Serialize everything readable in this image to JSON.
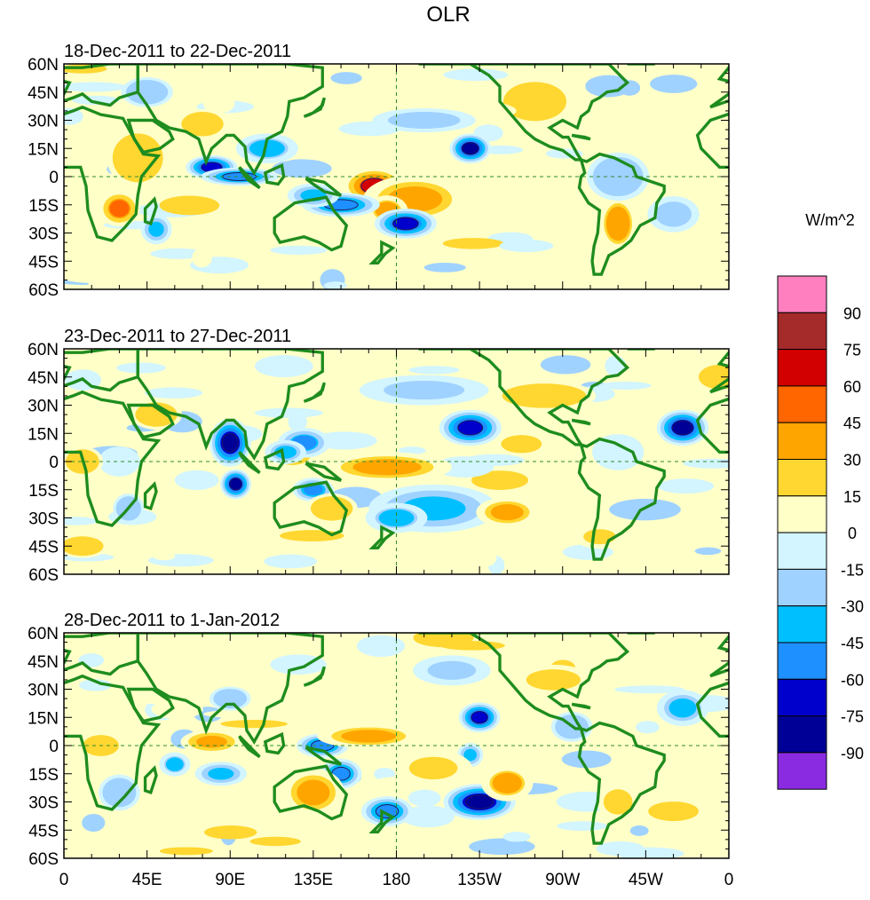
{
  "chart_data": {
    "type": "heatmap",
    "title": "OLR",
    "units_label": "W/m^2",
    "colorbar": {
      "tick_labels": [
        "90",
        "75",
        "60",
        "45",
        "30",
        "15",
        "0",
        "-15",
        "-30",
        "-45",
        "-60",
        "-75",
        "-90"
      ],
      "levels": [
        90,
        75,
        60,
        45,
        30,
        15,
        0,
        -15,
        -30,
        -45,
        -60,
        -75,
        -90
      ],
      "colors": [
        "#ff7fbf",
        "#a52a2a",
        "#d20000",
        "#ff6600",
        "#ffa500",
        "#ffd730",
        "#ffffc8",
        "#d2f5ff",
        "#a0d2ff",
        "#00bfff",
        "#1e90ff",
        "#0000cd",
        "#000096",
        "#8a2be2"
      ]
    },
    "x_ticks": [
      "0",
      "45E",
      "90E",
      "135E",
      "180",
      "135W",
      "90W",
      "45W",
      "0"
    ],
    "x_values": [
      0,
      45,
      90,
      135,
      180,
      225,
      270,
      315,
      360
    ],
    "y_ticks": [
      "60N",
      "45N",
      "30N",
      "15N",
      "0",
      "15S",
      "30S",
      "45S",
      "60S"
    ],
    "y_values": [
      60,
      45,
      30,
      15,
      0,
      -15,
      -30,
      -45,
      -60
    ],
    "xlim": [
      0,
      360
    ],
    "ylim": [
      -60,
      60
    ],
    "panels": [
      {
        "subtitle": "18-Dec-2011 to 22-Dec-2011",
        "blobs": [
          {
            "lon": 168,
            "lat": -5,
            "rlon": 12,
            "rlat": 6,
            "v": 65
          },
          {
            "lon": 190,
            "lat": -12,
            "rlon": 20,
            "rlat": 8,
            "v": 40
          },
          {
            "lon": 175,
            "lat": -18,
            "rlon": 8,
            "rlat": 5,
            "v": 35
          },
          {
            "lon": 30,
            "lat": -17,
            "rlon": 8,
            "rlat": 6,
            "v": 50
          },
          {
            "lon": 40,
            "lat": 10,
            "rlon": 12,
            "rlat": 10,
            "v": 20
          },
          {
            "lon": 75,
            "lat": 28,
            "rlon": 10,
            "rlat": 5,
            "v": 20
          },
          {
            "lon": 300,
            "lat": -25,
            "rlon": 8,
            "rlat": 10,
            "v": 35
          },
          {
            "lon": 255,
            "lat": 40,
            "rlon": 15,
            "rlat": 8,
            "v": 20
          },
          {
            "lon": 210,
            "lat": 35,
            "rlon": 25,
            "rlat": 4,
            "v": 15
          },
          {
            "lon": 340,
            "lat": 10,
            "rlon": 10,
            "rlat": 5,
            "v": 15
          },
          {
            "lon": 355,
            "lat": -30,
            "rlon": 8,
            "rlat": 4,
            "v": 15
          },
          {
            "lon": 90,
            "lat": -25,
            "rlon": 10,
            "rlat": 5,
            "v": 15
          },
          {
            "lon": 220,
            "lat": 15,
            "rlon": 8,
            "rlat": 5,
            "v": -80
          },
          {
            "lon": 80,
            "lat": 5,
            "rlon": 10,
            "rlat": 4,
            "v": -75
          },
          {
            "lon": 95,
            "lat": 0,
            "rlon": 15,
            "rlat": 3,
            "v": -60
          },
          {
            "lon": 150,
            "lat": -15,
            "rlon": 15,
            "rlat": 4,
            "v": -60
          },
          {
            "lon": 185,
            "lat": -25,
            "rlon": 12,
            "rlat": 5,
            "v": -70
          },
          {
            "lon": 135,
            "lat": -10,
            "rlon": 10,
            "rlat": 4,
            "v": -45
          },
          {
            "lon": 50,
            "lat": -28,
            "rlon": 6,
            "rlat": 5,
            "v": -45
          },
          {
            "lon": 110,
            "lat": 15,
            "rlon": 12,
            "rlat": 5,
            "v": -35
          },
          {
            "lon": 195,
            "lat": 30,
            "rlon": 20,
            "rlat": 4,
            "v": -25
          },
          {
            "lon": 45,
            "lat": 45,
            "rlon": 10,
            "rlat": 5,
            "v": -20
          },
          {
            "lon": 330,
            "lat": -20,
            "rlon": 10,
            "rlat": 6,
            "v": -25
          },
          {
            "lon": 300,
            "lat": 0,
            "rlon": 12,
            "rlat": 8,
            "v": -20
          }
        ]
      },
      {
        "subtitle": "23-Dec-2011 to 27-Dec-2011",
        "blobs": [
          {
            "lon": 90,
            "lat": 10,
            "rlon": 8,
            "rlat": 8,
            "v": -85
          },
          {
            "lon": 93,
            "lat": -12,
            "rlon": 6,
            "rlat": 5,
            "v": -80
          },
          {
            "lon": 220,
            "lat": 18,
            "rlon": 12,
            "rlat": 6,
            "v": -75
          },
          {
            "lon": 335,
            "lat": 18,
            "rlon": 10,
            "rlat": 6,
            "v": -80
          },
          {
            "lon": 130,
            "lat": 10,
            "rlon": 10,
            "rlat": 5,
            "v": -50
          },
          {
            "lon": 135,
            "lat": -15,
            "rlon": 8,
            "rlat": 4,
            "v": -55
          },
          {
            "lon": 120,
            "lat": 5,
            "rlon": 8,
            "rlat": 4,
            "v": -40
          },
          {
            "lon": 200,
            "lat": -25,
            "rlon": 25,
            "rlat": 8,
            "v": -45
          },
          {
            "lon": 180,
            "lat": -30,
            "rlon": 12,
            "rlat": 5,
            "v": -35
          },
          {
            "lon": 195,
            "lat": 38,
            "rlon": 25,
            "rlat": 5,
            "v": -30
          },
          {
            "lon": 35,
            "lat": -25,
            "rlon": 6,
            "rlat": 5,
            "v": -20
          },
          {
            "lon": 30,
            "lat": 0,
            "rlon": 8,
            "rlat": 5,
            "v": -15
          },
          {
            "lon": 300,
            "lat": 5,
            "rlon": 10,
            "rlat": 6,
            "v": -15
          },
          {
            "lon": 175,
            "lat": -3,
            "rlon": 25,
            "rlat": 5,
            "v": 40
          },
          {
            "lon": 240,
            "lat": -27,
            "rlon": 12,
            "rlat": 5,
            "v": 40
          },
          {
            "lon": 290,
            "lat": -40,
            "rlon": 10,
            "rlat": 4,
            "v": 30
          },
          {
            "lon": 50,
            "lat": 25,
            "rlon": 10,
            "rlat": 5,
            "v": 20
          },
          {
            "lon": 10,
            "lat": 0,
            "rlon": 8,
            "rlat": 5,
            "v": 20
          },
          {
            "lon": 145,
            "lat": -25,
            "rlon": 10,
            "rlat": 5,
            "v": 20
          },
          {
            "lon": 260,
            "lat": 35,
            "rlon": 20,
            "rlat": 5,
            "v": 20
          },
          {
            "lon": 355,
            "lat": 45,
            "rlon": 10,
            "rlat": 5,
            "v": 20
          },
          {
            "lon": 10,
            "lat": -45,
            "rlon": 10,
            "rlat": 4,
            "v": 20
          }
        ]
      },
      {
        "subtitle": "28-Dec-2011 to 1-Jan-2012",
        "blobs": [
          {
            "lon": 225,
            "lat": -30,
            "rlon": 14,
            "rlat": 6,
            "v": -85
          },
          {
            "lon": 225,
            "lat": 15,
            "rlon": 8,
            "rlat": 5,
            "v": -75
          },
          {
            "lon": 140,
            "lat": 0,
            "rlon": 10,
            "rlat": 4,
            "v": -60
          },
          {
            "lon": 150,
            "lat": -15,
            "rlon": 8,
            "rlat": 5,
            "v": -60
          },
          {
            "lon": 175,
            "lat": -35,
            "rlon": 10,
            "rlat": 5,
            "v": -60
          },
          {
            "lon": 85,
            "lat": -15,
            "rlon": 10,
            "rlat": 4,
            "v": -45
          },
          {
            "lon": 60,
            "lat": -10,
            "rlon": 6,
            "rlat": 4,
            "v": -35
          },
          {
            "lon": 220,
            "lat": -5,
            "rlon": 5,
            "rlat": 4,
            "v": -45
          },
          {
            "lon": 335,
            "lat": 20,
            "rlon": 10,
            "rlat": 6,
            "v": -40
          },
          {
            "lon": 275,
            "lat": 10,
            "rlon": 8,
            "rlat": 5,
            "v": -20
          },
          {
            "lon": 210,
            "lat": 40,
            "rlon": 15,
            "rlat": 5,
            "v": -30
          },
          {
            "lon": 90,
            "lat": 25,
            "rlon": 8,
            "rlat": 4,
            "v": -20
          },
          {
            "lon": 30,
            "lat": -25,
            "rlon": 8,
            "rlat": 6,
            "v": -20
          },
          {
            "lon": 80,
            "lat": 2,
            "rlon": 12,
            "rlat": 4,
            "v": 45
          },
          {
            "lon": 165,
            "lat": 5,
            "rlon": 20,
            "rlat": 4,
            "v": 40
          },
          {
            "lon": 135,
            "lat": -25,
            "rlon": 12,
            "rlat": 8,
            "v": 40
          },
          {
            "lon": 200,
            "lat": -12,
            "rlon": 15,
            "rlat": 6,
            "v": 30
          },
          {
            "lon": 240,
            "lat": -20,
            "rlon": 10,
            "rlat": 6,
            "v": 35
          },
          {
            "lon": 20,
            "lat": 0,
            "rlon": 10,
            "rlat": 5,
            "v": 25
          },
          {
            "lon": 265,
            "lat": 35,
            "rlon": 15,
            "rlat": 5,
            "v": 25
          },
          {
            "lon": 300,
            "lat": -30,
            "rlon": 8,
            "rlat": 6,
            "v": 25
          },
          {
            "lon": 330,
            "lat": -35,
            "rlon": 12,
            "rlat": 4,
            "v": 20
          },
          {
            "lon": 50,
            "lat": 30,
            "rlon": 10,
            "rlat": 5,
            "v": 15
          }
        ]
      }
    ]
  }
}
